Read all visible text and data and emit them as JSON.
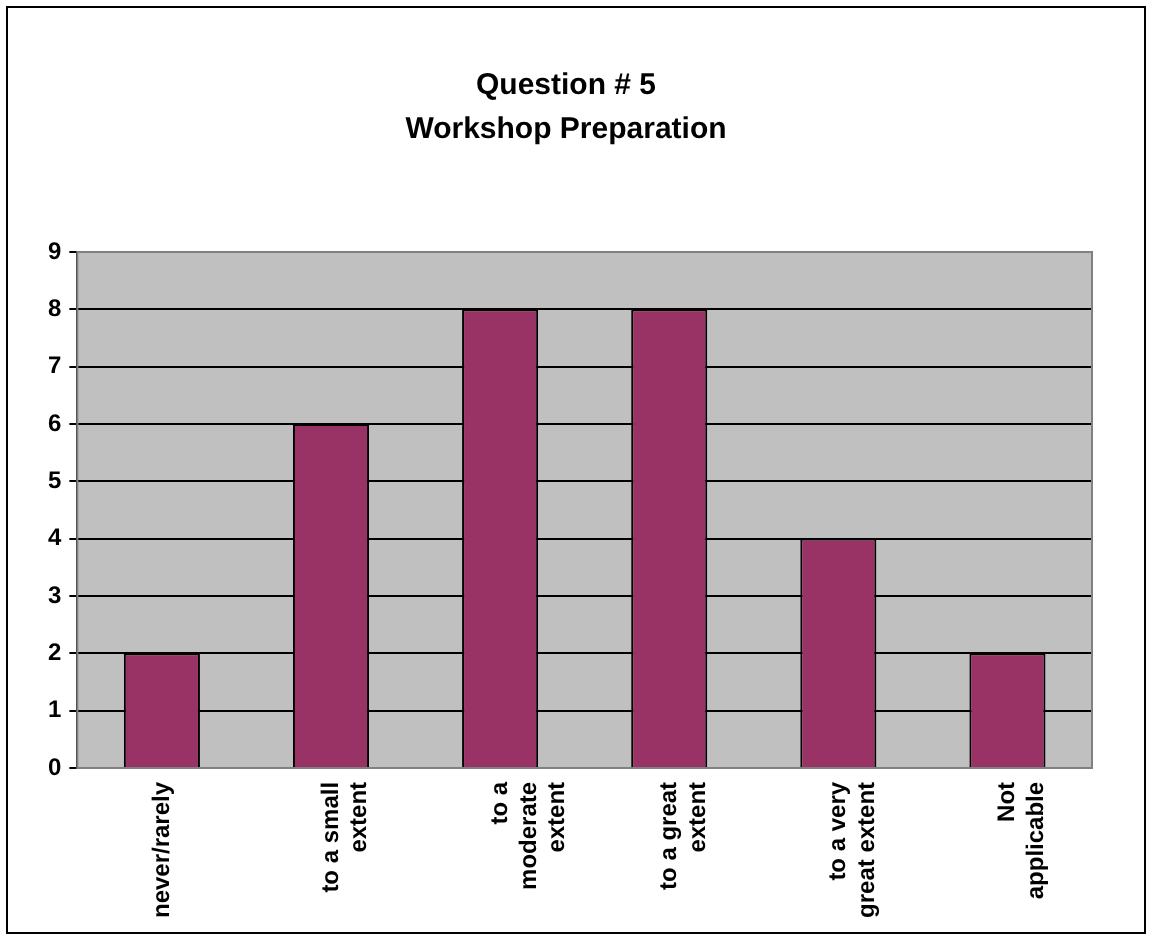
{
  "chart_data": {
    "type": "bar",
    "title": "Question # 5",
    "subtitle": "Workshop Preparation",
    "categories": [
      "never/rarely",
      "to a small extent",
      "to a moderate extent",
      "to a great extent",
      "to a very great extent",
      "Not applicable"
    ],
    "values": [
      2,
      6,
      8,
      8,
      4,
      2
    ],
    "color": "#993366",
    "ylim": [
      0,
      9
    ],
    "yticks": [
      0,
      1,
      2,
      3,
      4,
      5,
      6,
      7,
      8,
      9
    ],
    "grid": "y",
    "legend": false
  }
}
